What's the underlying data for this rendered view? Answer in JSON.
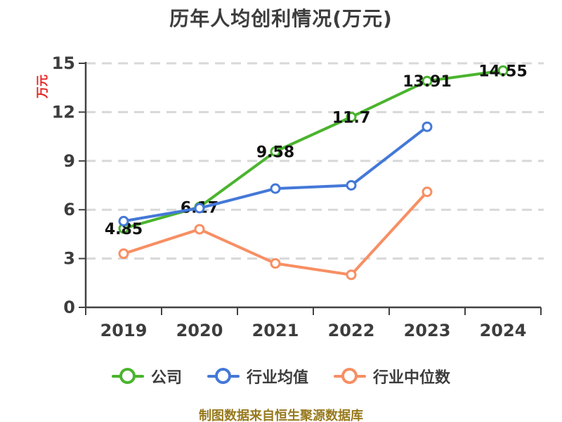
{
  "footer": "制图数据来自恒生聚源数据库",
  "colors": {
    "title": "#3d3d3d",
    "axis": "#424242",
    "grid": "#d8d8d8",
    "tick": "#3d3d3d",
    "dlabel": "#111111",
    "ylabel": "#e62222",
    "footer": "#97791d"
  },
  "chart_data": {
    "type": "line",
    "title": "历年人均创利情况(万元)",
    "ylabel": "万元",
    "xlabel": "",
    "categories": [
      "2019",
      "2020",
      "2021",
      "2022",
      "2023",
      "2024"
    ],
    "series": [
      {
        "key": "company",
        "name": "公司",
        "color": "#4ab42e",
        "values": [
          4.85,
          6.17,
          9.58,
          11.7,
          13.91,
          14.55
        ],
        "point_labels": [
          "4.85",
          "6.17",
          "9.58",
          "11.7",
          "13.91",
          "14.55"
        ]
      },
      {
        "key": "industry-average",
        "name": "行业均值",
        "color": "#4478d8",
        "values": [
          5.3,
          6.1,
          7.3,
          7.5,
          11.1,
          null
        ]
      },
      {
        "key": "industry-median",
        "name": "行业中位数",
        "color": "#f78f63",
        "values": [
          3.3,
          4.8,
          2.7,
          2.0,
          7.1,
          null
        ]
      }
    ],
    "ylim": [
      0,
      15
    ],
    "yticks": [
      0,
      3,
      6,
      9,
      12,
      15
    ],
    "grid": true,
    "grid_style": "dashed",
    "legend_position": "bottom",
    "marker": "circle-white-fill"
  }
}
